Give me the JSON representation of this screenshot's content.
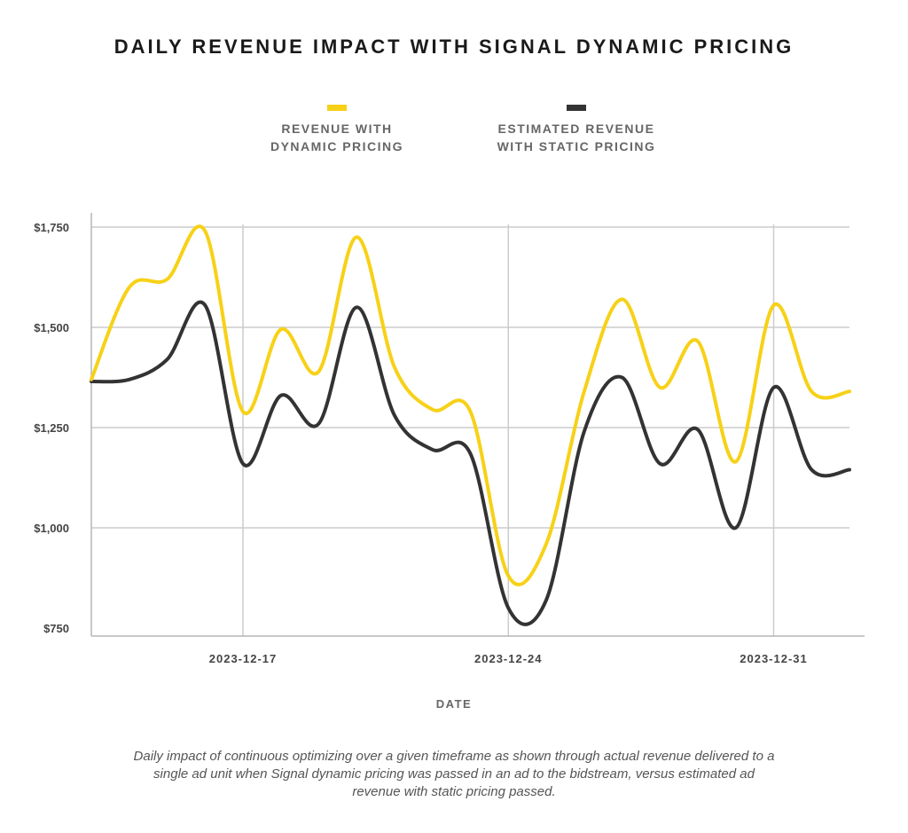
{
  "title": "DAILY REVENUE IMPACT WITH SIGNAL DYNAMIC PRICING",
  "legend": [
    {
      "label": "REVENUE WITH\nDYNAMIC PRICING",
      "color": "#f7d117"
    },
    {
      "label": "ESTIMATED REVENUE\nWITH STATIC PRICING",
      "color": "#333333"
    }
  ],
  "caption": "Daily impact of continuous optimizing over a given timeframe as shown through actual revenue delivered to a single ad unit when Signal dynamic pricing was passed in an ad to the bidstream, versus estimated ad revenue with static pricing passed.",
  "chart_data": {
    "type": "line",
    "title": "DAILY REVENUE IMPACT WITH SIGNAL DYNAMIC PRICING",
    "xlabel": "DATE",
    "ylabel": "",
    "x_tick_labels": [
      "2023-12-17",
      "2023-12-24",
      "2023-12-31"
    ],
    "y_tick_labels": [
      "$750",
      "$1,000",
      "$1,250",
      "$1,500",
      "$1,750"
    ],
    "y_ticks": [
      750,
      1000,
      1250,
      1500,
      1750
    ],
    "ylim": [
      740,
      1780
    ],
    "xlim": [
      "2023-12-13",
      "2024-01-02"
    ],
    "grid": true,
    "legend_position": "top-center",
    "categories": [
      "2023-12-13",
      "2023-12-14",
      "2023-12-15",
      "2023-12-16",
      "2023-12-17",
      "2023-12-18",
      "2023-12-19",
      "2023-12-20",
      "2023-12-21",
      "2023-12-22",
      "2023-12-23",
      "2023-12-24",
      "2023-12-25",
      "2023-12-26",
      "2023-12-27",
      "2023-12-28",
      "2023-12-29",
      "2023-12-30",
      "2023-12-31",
      "2024-01-01",
      "2024-01-02"
    ],
    "series": [
      {
        "name": "REVENUE WITH DYNAMIC PRICING",
        "color": "#f7d117",
        "values": [
          1370,
          1600,
          1620,
          1740,
          1290,
          1495,
          1390,
          1725,
          1400,
          1295,
          1290,
          880,
          960,
          1340,
          1570,
          1350,
          1465,
          1165,
          1555,
          1340,
          1340
        ]
      },
      {
        "name": "ESTIMATED REVENUE WITH STATIC PRICING",
        "color": "#333333",
        "values": [
          1365,
          1370,
          1420,
          1555,
          1160,
          1330,
          1260,
          1550,
          1280,
          1195,
          1185,
          800,
          820,
          1240,
          1375,
          1160,
          1245,
          1000,
          1350,
          1145,
          1145
        ]
      }
    ]
  }
}
